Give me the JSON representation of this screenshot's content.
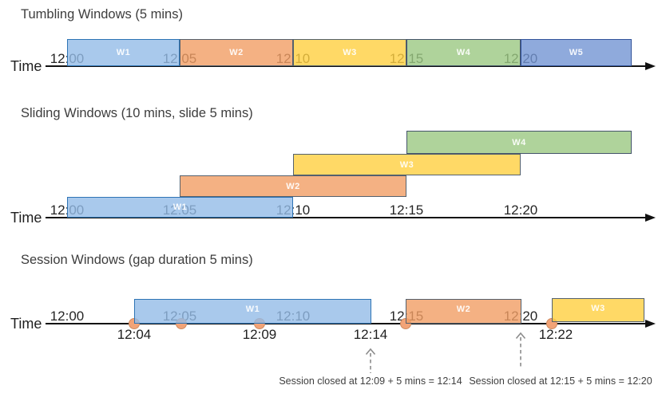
{
  "tumbling": {
    "title": "Tumbling Windows (5 mins)",
    "time_label": "Time",
    "ticks": [
      "12:00",
      "12:05",
      "12:10",
      "12:15",
      "12:20"
    ],
    "windows": [
      {
        "label": "W1",
        "color": "lightblue"
      },
      {
        "label": "W2",
        "color": "orange"
      },
      {
        "label": "W3",
        "color": "yellow"
      },
      {
        "label": "W4",
        "color": "green"
      },
      {
        "label": "W5",
        "color": "mediumblue"
      }
    ]
  },
  "sliding": {
    "title": "Sliding Windows (10 mins, slide 5 mins)",
    "time_label": "Time",
    "ticks": [
      "12:00",
      "12:05",
      "12:10",
      "12:15",
      "12:20"
    ],
    "windows": [
      {
        "label": "W1",
        "color": "lightblue"
      },
      {
        "label": "W2",
        "color": "orange"
      },
      {
        "label": "W3",
        "color": "yellow"
      },
      {
        "label": "W4",
        "color": "green"
      }
    ]
  },
  "session": {
    "title": "Session Windows (gap duration 5 mins)",
    "time_label": "Time",
    "ticks": [
      "12:00",
      "12:05",
      "12:10",
      "12:15",
      "12:20"
    ],
    "windows": [
      {
        "label": "W1",
        "color": "lightblue"
      },
      {
        "label": "W2",
        "color": "orange"
      },
      {
        "label": "W3",
        "color": "yellow"
      }
    ],
    "event_labels": [
      "12:04",
      "12:09",
      "12:14",
      "12:22"
    ],
    "event_dot_count": 5,
    "annotations": [
      "Session closed at 12:09 + 5 mins = 12:14",
      "Session closed at 12:15 + 5 mins = 12:20"
    ]
  },
  "colors": {
    "lightblue": "#A9C9EC",
    "lightblue_border": "#2E74B5",
    "orange": "#F4B183",
    "orange_border": "#54616E",
    "yellow": "#FFD966",
    "yellow_border": "#54616E",
    "green": "#AFD39B",
    "green_border": "#44546A",
    "mediumblue": "#8FAADC",
    "mediumblue_border": "#33549B",
    "event_dot": "#F2A377",
    "event_dot_border": "#D08C60",
    "timeline": "#111111",
    "tick_text": "#262626",
    "title_text": "#3D3D3D",
    "window_label_text": "#FFFFFF",
    "annotation_text": "#3F3F3F",
    "dashed_arrow": "#8C8C8C"
  }
}
